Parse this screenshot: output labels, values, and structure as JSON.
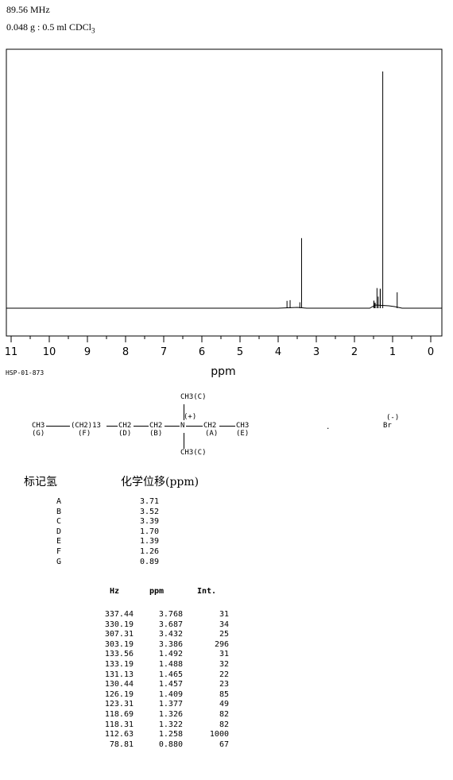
{
  "header": {
    "frequency": "89.56 MHz",
    "sample_prefix": "0.048 g : 0.5 ml CDCl",
    "sample_subscript": "3"
  },
  "spectrum_code": "HSP-01-873",
  "chart_data": {
    "type": "line",
    "xlabel": "ppm",
    "xlim": [
      11,
      0
    ],
    "x_ticks": [
      "11",
      "10",
      "9",
      "8",
      "7",
      "6",
      "5",
      "4",
      "3",
      "2",
      "1",
      "0"
    ],
    "ylim": [
      0,
      1000
    ],
    "series": [
      {
        "values_ppm": [
          3.768,
          3.687,
          3.432,
          3.386,
          1.492,
          1.488,
          1.465,
          1.457,
          1.409,
          1.377,
          1.326,
          1.322,
          1.258,
          0.88
        ],
        "intensity": [
          31,
          34,
          25,
          296,
          31,
          32,
          22,
          23,
          85,
          49,
          82,
          82,
          1000,
          67
        ]
      }
    ]
  },
  "structure": {
    "ch3_g": "CH3",
    "label_g": "(G)",
    "ch2_f": "(CH2)13",
    "label_f": "(F)",
    "ch2_d": "CH2",
    "label_d": "(D)",
    "ch2_b": "CH2",
    "label_b": "(B)",
    "n_plus": "N",
    "charge": "(+)",
    "ch3_c_top": "CH3(C)",
    "ch3_c_bottom": "CH3(C)",
    "ch2_a": "CH2",
    "label_a": "(A)",
    "ch3_e": "CH3",
    "label_e": "(E)",
    "dot": ".",
    "anion": "Br",
    "anion_charge": "(-)"
  },
  "assignment": {
    "col_label": "标记氢",
    "col_shift": "化学位移(ppm)",
    "rows": [
      {
        "label": "A",
        "shift": "3.71"
      },
      {
        "label": "B",
        "shift": "3.52"
      },
      {
        "label": "C",
        "shift": "3.39"
      },
      {
        "label": "D",
        "shift": "1.70"
      },
      {
        "label": "E",
        "shift": "1.39"
      },
      {
        "label": "F",
        "shift": "1.26"
      },
      {
        "label": "G",
        "shift": "0.89"
      }
    ]
  },
  "peak_table": {
    "headers": {
      "hz": "Hz",
      "ppm": "ppm",
      "int": "Int."
    },
    "rows": [
      {
        "hz": "337.44",
        "ppm": "3.768",
        "int": "31"
      },
      {
        "hz": "330.19",
        "ppm": "3.687",
        "int": "34"
      },
      {
        "hz": "307.31",
        "ppm": "3.432",
        "int": "25"
      },
      {
        "hz": "303.19",
        "ppm": "3.386",
        "int": "296"
      },
      {
        "hz": "133.56",
        "ppm": "1.492",
        "int": "31"
      },
      {
        "hz": "133.19",
        "ppm": "1.488",
        "int": "32"
      },
      {
        "hz": "131.13",
        "ppm": "1.465",
        "int": "22"
      },
      {
        "hz": "130.44",
        "ppm": "1.457",
        "int": "23"
      },
      {
        "hz": "126.19",
        "ppm": "1.409",
        "int": "85"
      },
      {
        "hz": "123.31",
        "ppm": "1.377",
        "int": "49"
      },
      {
        "hz": "118.69",
        "ppm": "1.326",
        "int": "82"
      },
      {
        "hz": "118.31",
        "ppm": "1.322",
        "int": "82"
      },
      {
        "hz": "112.63",
        "ppm": "1.258",
        "int": "1000"
      },
      {
        "hz": "78.81",
        "ppm": "0.880",
        "int": "67"
      }
    ]
  }
}
